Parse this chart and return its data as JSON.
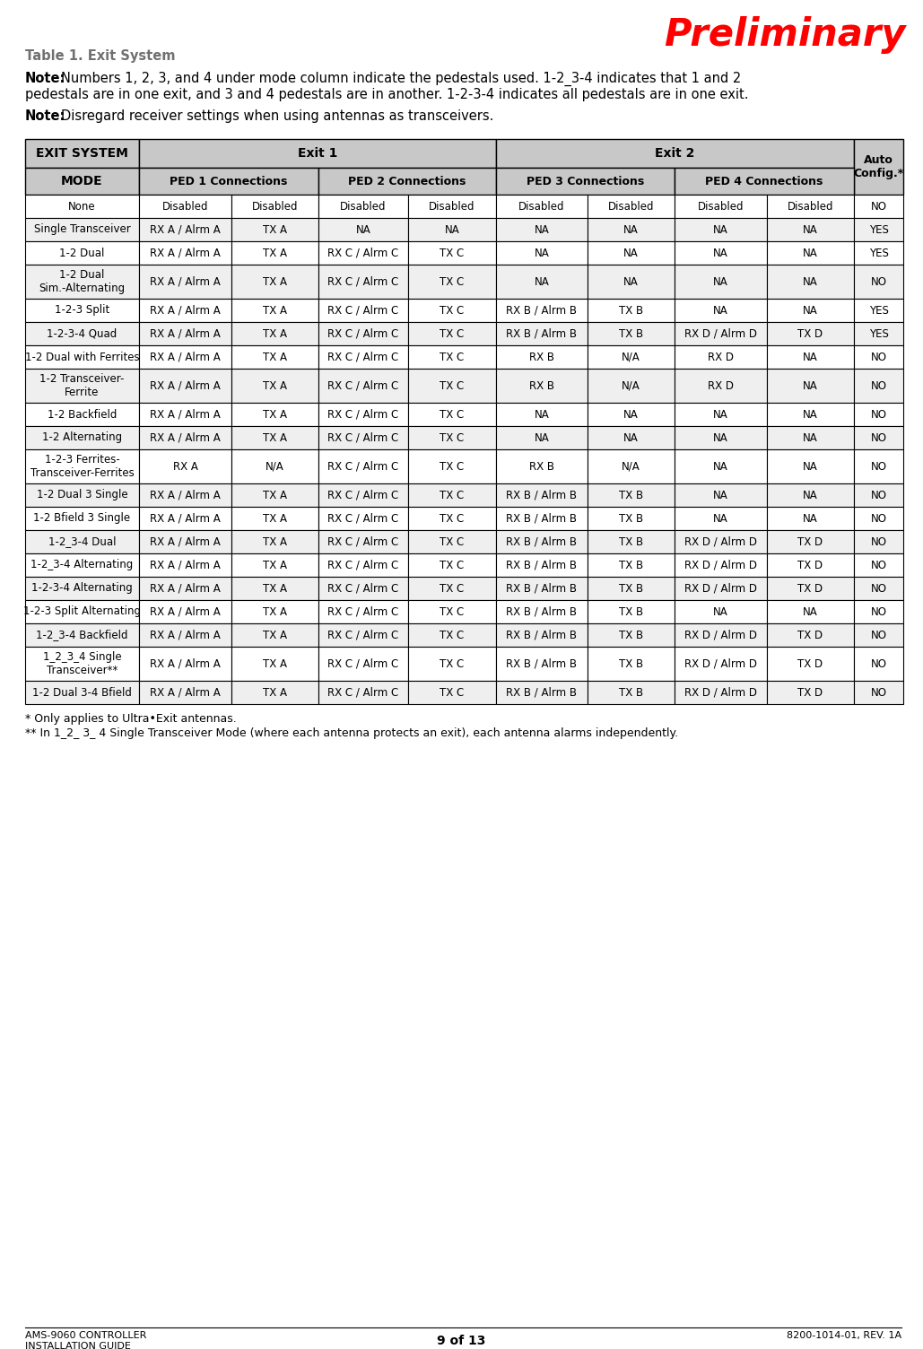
{
  "title_preliminary": "Preliminary",
  "table_title": "Table 1. Exit System",
  "note1_bold": "Note:",
  "note1_text": " Numbers 1, 2, 3, and 4 under mode column indicate the pedestals used. 1-2_3-4 indicates that 1 and 2 pedestals are in one exit, and 3 and 4 pedestals are in another. 1-2-3-4 indicates all pedestals are in one exit.",
  "note2_bold": "Note:",
  "note2_text": " Disregard receiver settings when using antennas as transceivers.",
  "footer_left1": "AMS-9060 CONTROLLER",
  "footer_left2": "INSTALLATION GUIDE",
  "footer_center": "9 of 13",
  "footer_right": "8200-1014-01, REV. 1A",
  "rows": [
    [
      "None",
      "Disabled",
      "Disabled",
      "Disabled",
      "Disabled",
      "Disabled",
      "Disabled",
      "Disabled",
      "Disabled",
      "NO"
    ],
    [
      "Single Transceiver",
      "RX A / Alrm A",
      "TX A",
      "NA",
      "NA",
      "NA",
      "NA",
      "NA",
      "NA",
      "YES"
    ],
    [
      "1-2 Dual",
      "RX A / Alrm A",
      "TX A",
      "RX C / Alrm C",
      "TX C",
      "NA",
      "NA",
      "NA",
      "NA",
      "YES"
    ],
    [
      "1-2 Dual\nSim.-Alternating",
      "RX A / Alrm A",
      "TX A",
      "RX C / Alrm C",
      "TX C",
      "NA",
      "NA",
      "NA",
      "NA",
      "NO"
    ],
    [
      "1-2-3 Split",
      "RX A / Alrm A",
      "TX A",
      "RX C / Alrm C",
      "TX C",
      "RX B / Alrm B",
      "TX B",
      "NA",
      "NA",
      "YES"
    ],
    [
      "1-2-3-4 Quad",
      "RX A / Alrm A",
      "TX A",
      "RX C / Alrm C",
      "TX C",
      "RX B / Alrm B",
      "TX B",
      "RX D / Alrm D",
      "TX D",
      "YES"
    ],
    [
      "1-2 Dual with Ferrites",
      "RX A / Alrm A",
      "TX A",
      "RX C / Alrm C",
      "TX C",
      "RX B",
      "N/A",
      "RX D",
      "NA",
      "NO"
    ],
    [
      "1-2 Transceiver-\nFerrite",
      "RX A / Alrm A",
      "TX A",
      "RX C / Alrm C",
      "TX C",
      "RX B",
      "N/A",
      "RX D",
      "NA",
      "NO"
    ],
    [
      "1-2 Backfield",
      "RX A / Alrm A",
      "TX A",
      "RX C / Alrm C",
      "TX C",
      "NA",
      "NA",
      "NA",
      "NA",
      "NO"
    ],
    [
      "1-2 Alternating",
      "RX A / Alrm A",
      "TX A",
      "RX C / Alrm C",
      "TX C",
      "NA",
      "NA",
      "NA",
      "NA",
      "NO"
    ],
    [
      "1-2-3 Ferrites-\nTransceiver-Ferrites",
      "RX A",
      "N/A",
      "RX C / Alrm C",
      "TX C",
      "RX B",
      "N/A",
      "NA",
      "NA",
      "NO"
    ],
    [
      "1-2 Dual 3 Single",
      "RX A / Alrm A",
      "TX A",
      "RX C / Alrm C",
      "TX C",
      "RX B / Alrm B",
      "TX B",
      "NA",
      "NA",
      "NO"
    ],
    [
      "1-2 Bfield 3 Single",
      "RX A / Alrm A",
      "TX A",
      "RX C / Alrm C",
      "TX C",
      "RX B / Alrm B",
      "TX B",
      "NA",
      "NA",
      "NO"
    ],
    [
      "1-2_3-4 Dual",
      "RX A / Alrm A",
      "TX A",
      "RX C / Alrm C",
      "TX C",
      "RX B / Alrm B",
      "TX B",
      "RX D / Alrm D",
      "TX D",
      "NO"
    ],
    [
      "1-2_3-4 Alternating",
      "RX A / Alrm A",
      "TX A",
      "RX C / Alrm C",
      "TX C",
      "RX B / Alrm B",
      "TX B",
      "RX D / Alrm D",
      "TX D",
      "NO"
    ],
    [
      "1-2-3-4 Alternating",
      "RX A / Alrm A",
      "TX A",
      "RX C / Alrm C",
      "TX C",
      "RX B / Alrm B",
      "TX B",
      "RX D / Alrm D",
      "TX D",
      "NO"
    ],
    [
      "1-2-3 Split Alternating",
      "RX A / Alrm A",
      "TX A",
      "RX C / Alrm C",
      "TX C",
      "RX B / Alrm B",
      "TX B",
      "NA",
      "NA",
      "NO"
    ],
    [
      "1-2_3-4 Backfield",
      "RX A / Alrm A",
      "TX A",
      "RX C / Alrm C",
      "TX C",
      "RX B / Alrm B",
      "TX B",
      "RX D / Alrm D",
      "TX D",
      "NO"
    ],
    [
      "1_2_3_4 Single\nTransceiver**",
      "RX A / Alrm A",
      "TX A",
      "RX C / Alrm C",
      "TX C",
      "RX B / Alrm B",
      "TX B",
      "RX D / Alrm D",
      "TX D",
      "NO"
    ],
    [
      "1-2 Dual 3-4 Bfield",
      "RX A / Alrm A",
      "TX A",
      "RX C / Alrm C",
      "TX C",
      "RX B / Alrm B",
      "TX B",
      "RX D / Alrm D",
      "TX D",
      "NO"
    ]
  ],
  "footnote1": "* Only applies to Ultra•Exit antennas.",
  "footnote2": "** In 1_2_ 3_ 4 Single Transceiver Mode (where each antenna protects an exit), each antenna alarms independently.",
  "bg_color": "#ffffff",
  "header_bg": "#c8c8c8",
  "cell_bg_even": "#ffffff",
  "cell_bg_odd": "#efefef",
  "border_color": "#000000",
  "text_color": "#000000",
  "title_color": "#ff0000",
  "table_title_color": "#707070"
}
